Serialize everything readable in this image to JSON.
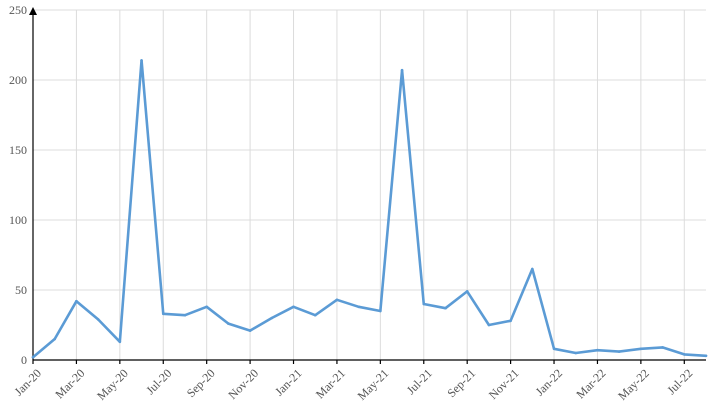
{
  "chart_data": {
    "type": "line",
    "title": "",
    "xlabel": "",
    "ylabel": "",
    "ylim": [
      0,
      250
    ],
    "grid": true,
    "legend": "none",
    "colors": {
      "line": "#5b9bd5",
      "axis": "#000000",
      "grid": "#dcdcdc"
    },
    "y_ticks": [
      0,
      50,
      100,
      150,
      200,
      250
    ],
    "x": [
      "Jan-20",
      "Feb-20",
      "Mar-20",
      "Apr-20",
      "May-20",
      "Jun-20",
      "Jul-20",
      "Aug-20",
      "Sep-20",
      "Oct-20",
      "Nov-20",
      "Dec-20",
      "Jan-21",
      "Feb-21",
      "Mar-21",
      "Apr-21",
      "May-21",
      "Jun-21",
      "Jul-21",
      "Aug-21",
      "Sep-21",
      "Oct-21",
      "Nov-21",
      "Dec-21",
      "Jan-22",
      "Feb-22",
      "Mar-22",
      "Apr-22",
      "May-22",
      "Jun-22",
      "Jul-22",
      "Aug-22"
    ],
    "x_tick_labels": [
      "Jan-20",
      "Mar-20",
      "May-20",
      "Jul-20",
      "Sep-20",
      "Nov-20",
      "Jan-21",
      "Mar-21",
      "May-21",
      "Jul-21",
      "Sep-21",
      "Nov-21",
      "Jan-22",
      "Mar-22",
      "May-22",
      "Jul-22"
    ],
    "series": [
      {
        "values": [
          2,
          15,
          42,
          29,
          13,
          214,
          33,
          32,
          38,
          26,
          21,
          30,
          38,
          32,
          43,
          38,
          35,
          207,
          40,
          37,
          49,
          25,
          28,
          65,
          8,
          5,
          7,
          6,
          8,
          9,
          4,
          3
        ]
      }
    ]
  }
}
